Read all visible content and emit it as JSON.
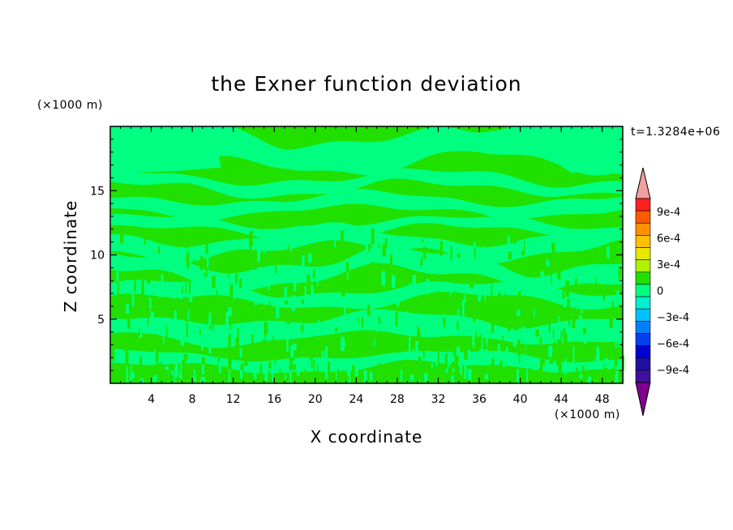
{
  "chart_data": {
    "type": "heatmap",
    "title": "the Exner function deviation",
    "xlabel": "X coordinate",
    "ylabel": "Z coordinate",
    "x_unit": "(×1000 m)",
    "y_unit": "(×1000 m)",
    "time_label": "t=1.3284e+06",
    "xlim": [
      0,
      50
    ],
    "ylim": [
      0,
      20
    ],
    "x_ticks": [
      4,
      8,
      12,
      16,
      20,
      24,
      28,
      32,
      36,
      40,
      44,
      48
    ],
    "y_ticks": [
      5,
      10,
      15
    ],
    "colorbar": {
      "labels": [
        "9e-4",
        "6e-4",
        "3e-4",
        "0",
        "−3e-4",
        "−6e-4",
        "−9e-4"
      ],
      "label_values": [
        0.0009,
        0.0006,
        0.0003,
        0,
        -0.0003,
        -0.0006,
        -0.0009
      ],
      "colors": [
        "#f0a0a0",
        "#ff2020",
        "#ff5a00",
        "#ff9000",
        "#ffc000",
        "#e8e800",
        "#b0f000",
        "#20e000",
        "#00ff80",
        "#00f0d0",
        "#00c0ff",
        "#0080ff",
        "#0040f0",
        "#0000d0",
        "#2010a0",
        "#4010a0",
        "#800090"
      ]
    },
    "field": {
      "background_level": "0 (green)",
      "dominant_levels": [
        "-1.5e-4 to 0 (#00ff80)",
        "0 to 1.5e-4 (#20e000)"
      ],
      "colors": {
        "neg_small": "#00ff80",
        "pos_small": "#20e000"
      }
    }
  }
}
